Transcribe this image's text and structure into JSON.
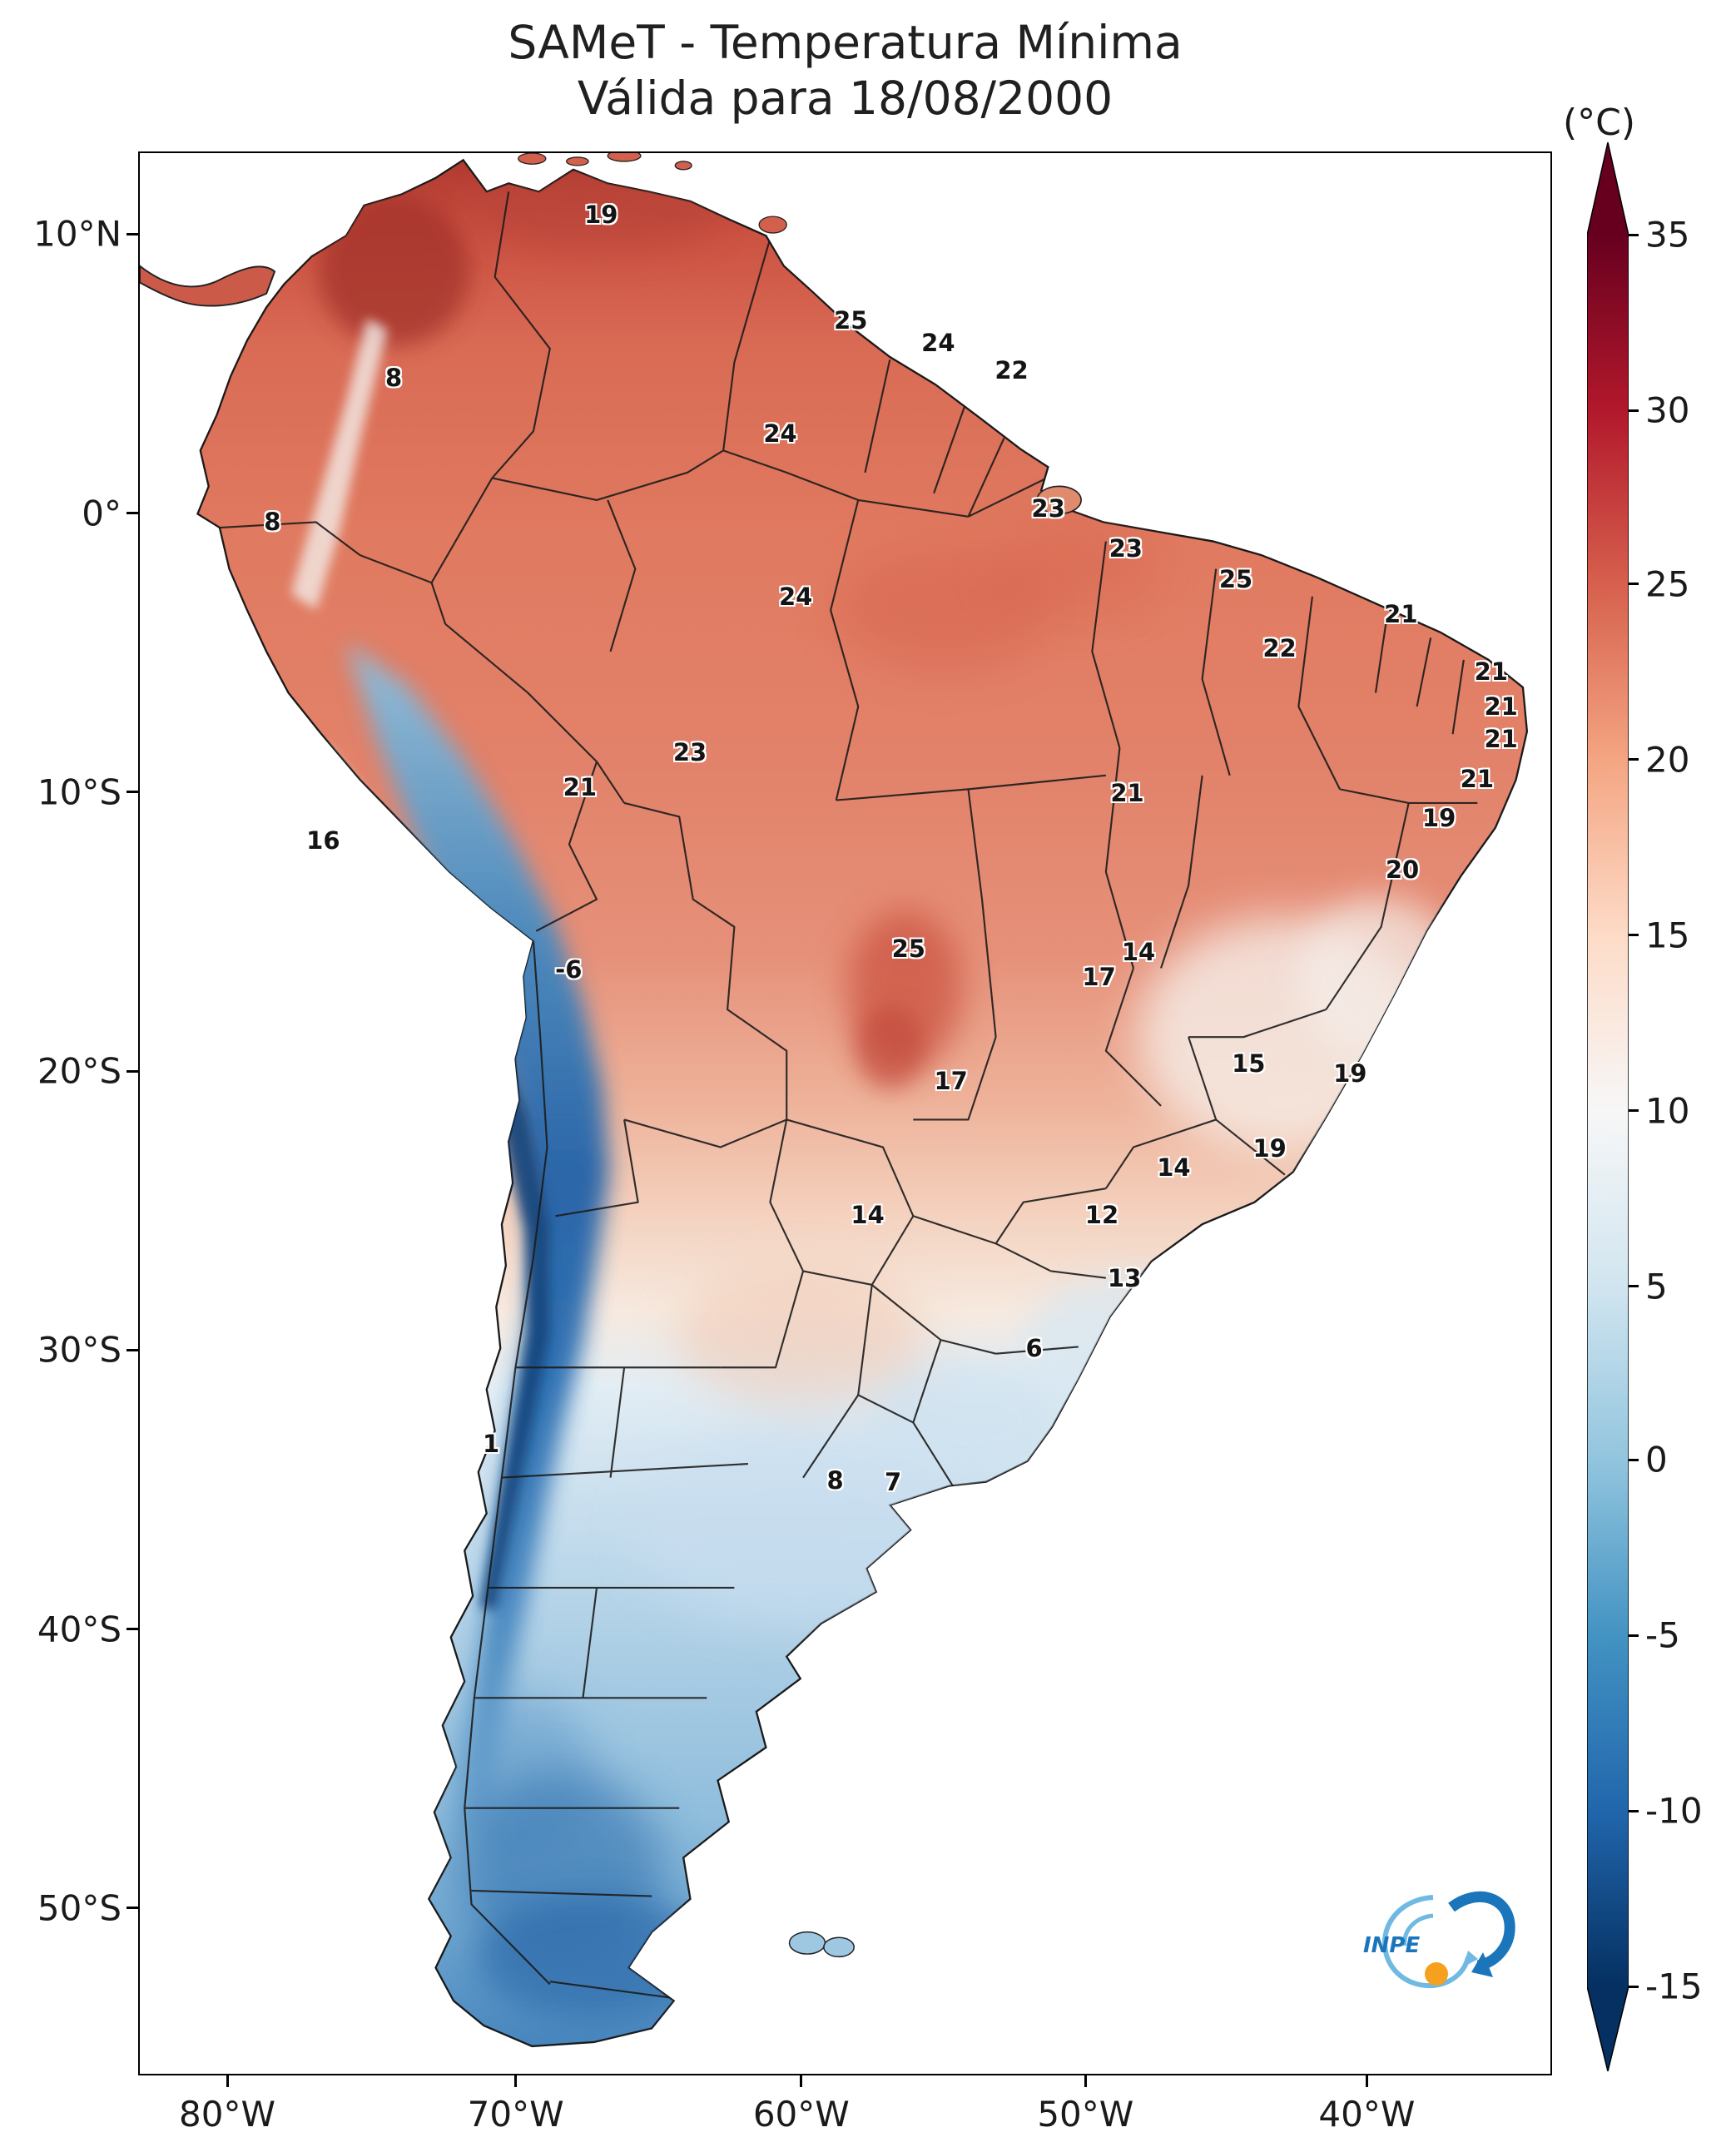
{
  "title": {
    "line1": "SAMeT - Temperatura Mínima",
    "line2": "Válida para 18/08/2000"
  },
  "colorbar": {
    "unit_label": "(°C)",
    "ticks": [
      {
        "label": "35",
        "offset_pct": 4.8
      },
      {
        "label": "30",
        "offset_pct": 13.9
      },
      {
        "label": "25",
        "offset_pct": 22.9
      },
      {
        "label": "20",
        "offset_pct": 32.0
      },
      {
        "label": "15",
        "offset_pct": 41.1
      },
      {
        "label": "10",
        "offset_pct": 50.2
      },
      {
        "label": "5",
        "offset_pct": 59.3
      },
      {
        "label": "0",
        "offset_pct": 68.3
      },
      {
        "label": "-5",
        "offset_pct": 77.4
      },
      {
        "label": "-10",
        "offset_pct": 86.5
      },
      {
        "label": "-15",
        "offset_pct": 95.6
      }
    ],
    "gradient_stops": [
      {
        "offset_pct": 0,
        "color": "#67001f"
      },
      {
        "offset_pct": 4.8,
        "color": "#67001f"
      },
      {
        "offset_pct": 13.9,
        "color": "#b2182b"
      },
      {
        "offset_pct": 22.9,
        "color": "#d6604d"
      },
      {
        "offset_pct": 32.0,
        "color": "#f4a582"
      },
      {
        "offset_pct": 41.1,
        "color": "#fddbc7"
      },
      {
        "offset_pct": 50.2,
        "color": "#f7f7f7"
      },
      {
        "offset_pct": 59.3,
        "color": "#d1e5f0"
      },
      {
        "offset_pct": 68.3,
        "color": "#92c5de"
      },
      {
        "offset_pct": 77.4,
        "color": "#4393c3"
      },
      {
        "offset_pct": 86.5,
        "color": "#2166ac"
      },
      {
        "offset_pct": 95.6,
        "color": "#053061"
      },
      {
        "offset_pct": 100,
        "color": "#053061"
      }
    ]
  },
  "axes": {
    "lat_ticks": [
      {
        "label": "10°N",
        "y_pct": 4.3
      },
      {
        "label": "0°",
        "y_pct": 18.8
      },
      {
        "label": "10°S",
        "y_pct": 33.3
      },
      {
        "label": "20°S",
        "y_pct": 47.8
      },
      {
        "label": "30°S",
        "y_pct": 62.3
      },
      {
        "label": "40°S",
        "y_pct": 76.8
      },
      {
        "label": "50°S",
        "y_pct": 91.3
      }
    ],
    "lon_ticks": [
      {
        "label": "80°W",
        "x_pct": 6.3
      },
      {
        "label": "70°W",
        "x_pct": 26.7
      },
      {
        "label": "60°W",
        "x_pct": 46.9
      },
      {
        "label": "50°W",
        "x_pct": 67.0
      },
      {
        "label": "40°W",
        "x_pct": 86.9
      }
    ]
  },
  "logo": {
    "text": "INPE"
  },
  "chart_data": {
    "type": "heatmap",
    "title": "SAMeT - Temperatura Mínima",
    "subtitle": "Válida para 18/08/2000",
    "region": "South America",
    "unit": "°C",
    "value_range": [
      -15,
      35
    ],
    "colormap": "red-white-blue (RdBu reversed), white near 10 °C",
    "colorbar_tick_values": [
      35,
      30,
      25,
      20,
      15,
      10,
      5,
      0,
      -5,
      -10,
      -15
    ],
    "x_axis_ticks": [
      "80°W",
      "70°W",
      "60°W",
      "50°W",
      "40°W"
    ],
    "y_axis_ticks": [
      "10°N",
      "0°",
      "10°S",
      "20°S",
      "30°S",
      "40°S",
      "50°S"
    ],
    "point_labels": [
      {
        "value": "19",
        "x_pct": 32.7,
        "y_pct": 3.2
      },
      {
        "value": "25",
        "x_pct": 50.4,
        "y_pct": 8.7
      },
      {
        "value": "24",
        "x_pct": 56.6,
        "y_pct": 9.9
      },
      {
        "value": "22",
        "x_pct": 61.8,
        "y_pct": 11.3
      },
      {
        "value": "8",
        "x_pct": 18.0,
        "y_pct": 11.7
      },
      {
        "value": "24",
        "x_pct": 45.4,
        "y_pct": 14.6
      },
      {
        "value": "23",
        "x_pct": 64.4,
        "y_pct": 18.5
      },
      {
        "value": "8",
        "x_pct": 9.4,
        "y_pct": 19.2
      },
      {
        "value": "23",
        "x_pct": 69.9,
        "y_pct": 20.6
      },
      {
        "value": "25",
        "x_pct": 77.7,
        "y_pct": 22.2
      },
      {
        "value": "24",
        "x_pct": 46.5,
        "y_pct": 23.1
      },
      {
        "value": "21",
        "x_pct": 89.4,
        "y_pct": 24.0
      },
      {
        "value": "22",
        "x_pct": 80.8,
        "y_pct": 25.8
      },
      {
        "value": "21",
        "x_pct": 95.8,
        "y_pct": 27.0
      },
      {
        "value": "21",
        "x_pct": 96.5,
        "y_pct": 28.8
      },
      {
        "value": "21",
        "x_pct": 96.5,
        "y_pct": 30.5
      },
      {
        "value": "23",
        "x_pct": 39.0,
        "y_pct": 31.2
      },
      {
        "value": "21",
        "x_pct": 31.2,
        "y_pct": 33.0
      },
      {
        "value": "21",
        "x_pct": 70.0,
        "y_pct": 33.3
      },
      {
        "value": "21",
        "x_pct": 94.8,
        "y_pct": 32.6
      },
      {
        "value": "19",
        "x_pct": 92.1,
        "y_pct": 34.6
      },
      {
        "value": "16",
        "x_pct": 13.0,
        "y_pct": 35.8
      },
      {
        "value": "20",
        "x_pct": 89.5,
        "y_pct": 37.3
      },
      {
        "value": "-6",
        "x_pct": 30.4,
        "y_pct": 42.5
      },
      {
        "value": "25",
        "x_pct": 54.5,
        "y_pct": 41.4
      },
      {
        "value": "14",
        "x_pct": 70.8,
        "y_pct": 41.6
      },
      {
        "value": "17",
        "x_pct": 68.0,
        "y_pct": 42.9
      },
      {
        "value": "15",
        "x_pct": 78.6,
        "y_pct": 47.4
      },
      {
        "value": "19",
        "x_pct": 85.8,
        "y_pct": 47.9
      },
      {
        "value": "17",
        "x_pct": 57.5,
        "y_pct": 48.3
      },
      {
        "value": "19",
        "x_pct": 80.1,
        "y_pct": 51.8
      },
      {
        "value": "14",
        "x_pct": 73.3,
        "y_pct": 52.8
      },
      {
        "value": "14",
        "x_pct": 51.6,
        "y_pct": 55.3
      },
      {
        "value": "12",
        "x_pct": 68.2,
        "y_pct": 55.3
      },
      {
        "value": "13",
        "x_pct": 69.8,
        "y_pct": 58.6
      },
      {
        "value": "6",
        "x_pct": 63.4,
        "y_pct": 62.2
      },
      {
        "value": "1",
        "x_pct": 24.9,
        "y_pct": 67.2
      },
      {
        "value": "8",
        "x_pct": 49.3,
        "y_pct": 69.1
      },
      {
        "value": "7",
        "x_pct": 53.4,
        "y_pct": 69.2
      }
    ]
  }
}
